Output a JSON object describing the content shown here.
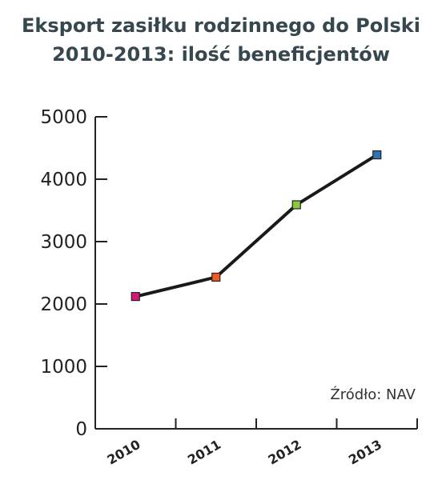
{
  "title_line1": "Eksport zasiłku rodzinnego do Polski",
  "title_line2": "2010-2013: ilość beneficjentów",
  "source": "Źródło: NAV",
  "chart_data": {
    "type": "line",
    "categories": [
      "2010",
      "2011",
      "2012",
      "2013"
    ],
    "values": [
      2120,
      2430,
      3590,
      4390
    ],
    "marker_colors": [
      "#d6177a",
      "#f05a24",
      "#8dc63f",
      "#2e75b6"
    ],
    "ylim": [
      0,
      5000
    ],
    "yticks": [
      0,
      1000,
      2000,
      3000,
      4000,
      5000
    ],
    "line_color": "#1a1a1a",
    "grid": false
  }
}
